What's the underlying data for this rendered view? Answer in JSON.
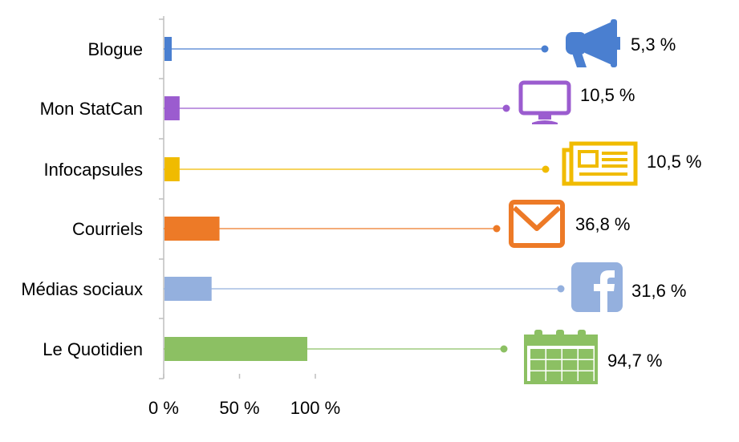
{
  "chart_data": {
    "type": "bar",
    "orientation": "horizontal",
    "categories": [
      "Blogue",
      "Mon StatCan",
      "Infocapsules",
      "Courriels",
      "Médias sociaux",
      "Le Quotidien"
    ],
    "values": [
      5.3,
      10.5,
      10.5,
      36.8,
      31.6,
      94.7
    ],
    "value_labels": [
      "5,3 %",
      "10,5 %",
      "10,5 %",
      "36,8 %",
      "31,6 %",
      "94,7 %"
    ],
    "colors": [
      "#4a7fd0",
      "#9b5ccf",
      "#f0bb00",
      "#ed7a27",
      "#94b0de",
      "#8cc063"
    ],
    "icons": [
      "megaphone-icon",
      "monitor-icon",
      "newspaper-icon",
      "envelope-icon",
      "facebook-icon",
      "calendar-icon"
    ],
    "xlim": [
      0,
      100
    ],
    "xticks": [
      "0 %",
      "50 %",
      "100 %"
    ],
    "xtick_values": [
      0,
      50,
      100
    ],
    "title": "",
    "xlabel": "",
    "ylabel": "",
    "grid": false,
    "legend": "none"
  }
}
